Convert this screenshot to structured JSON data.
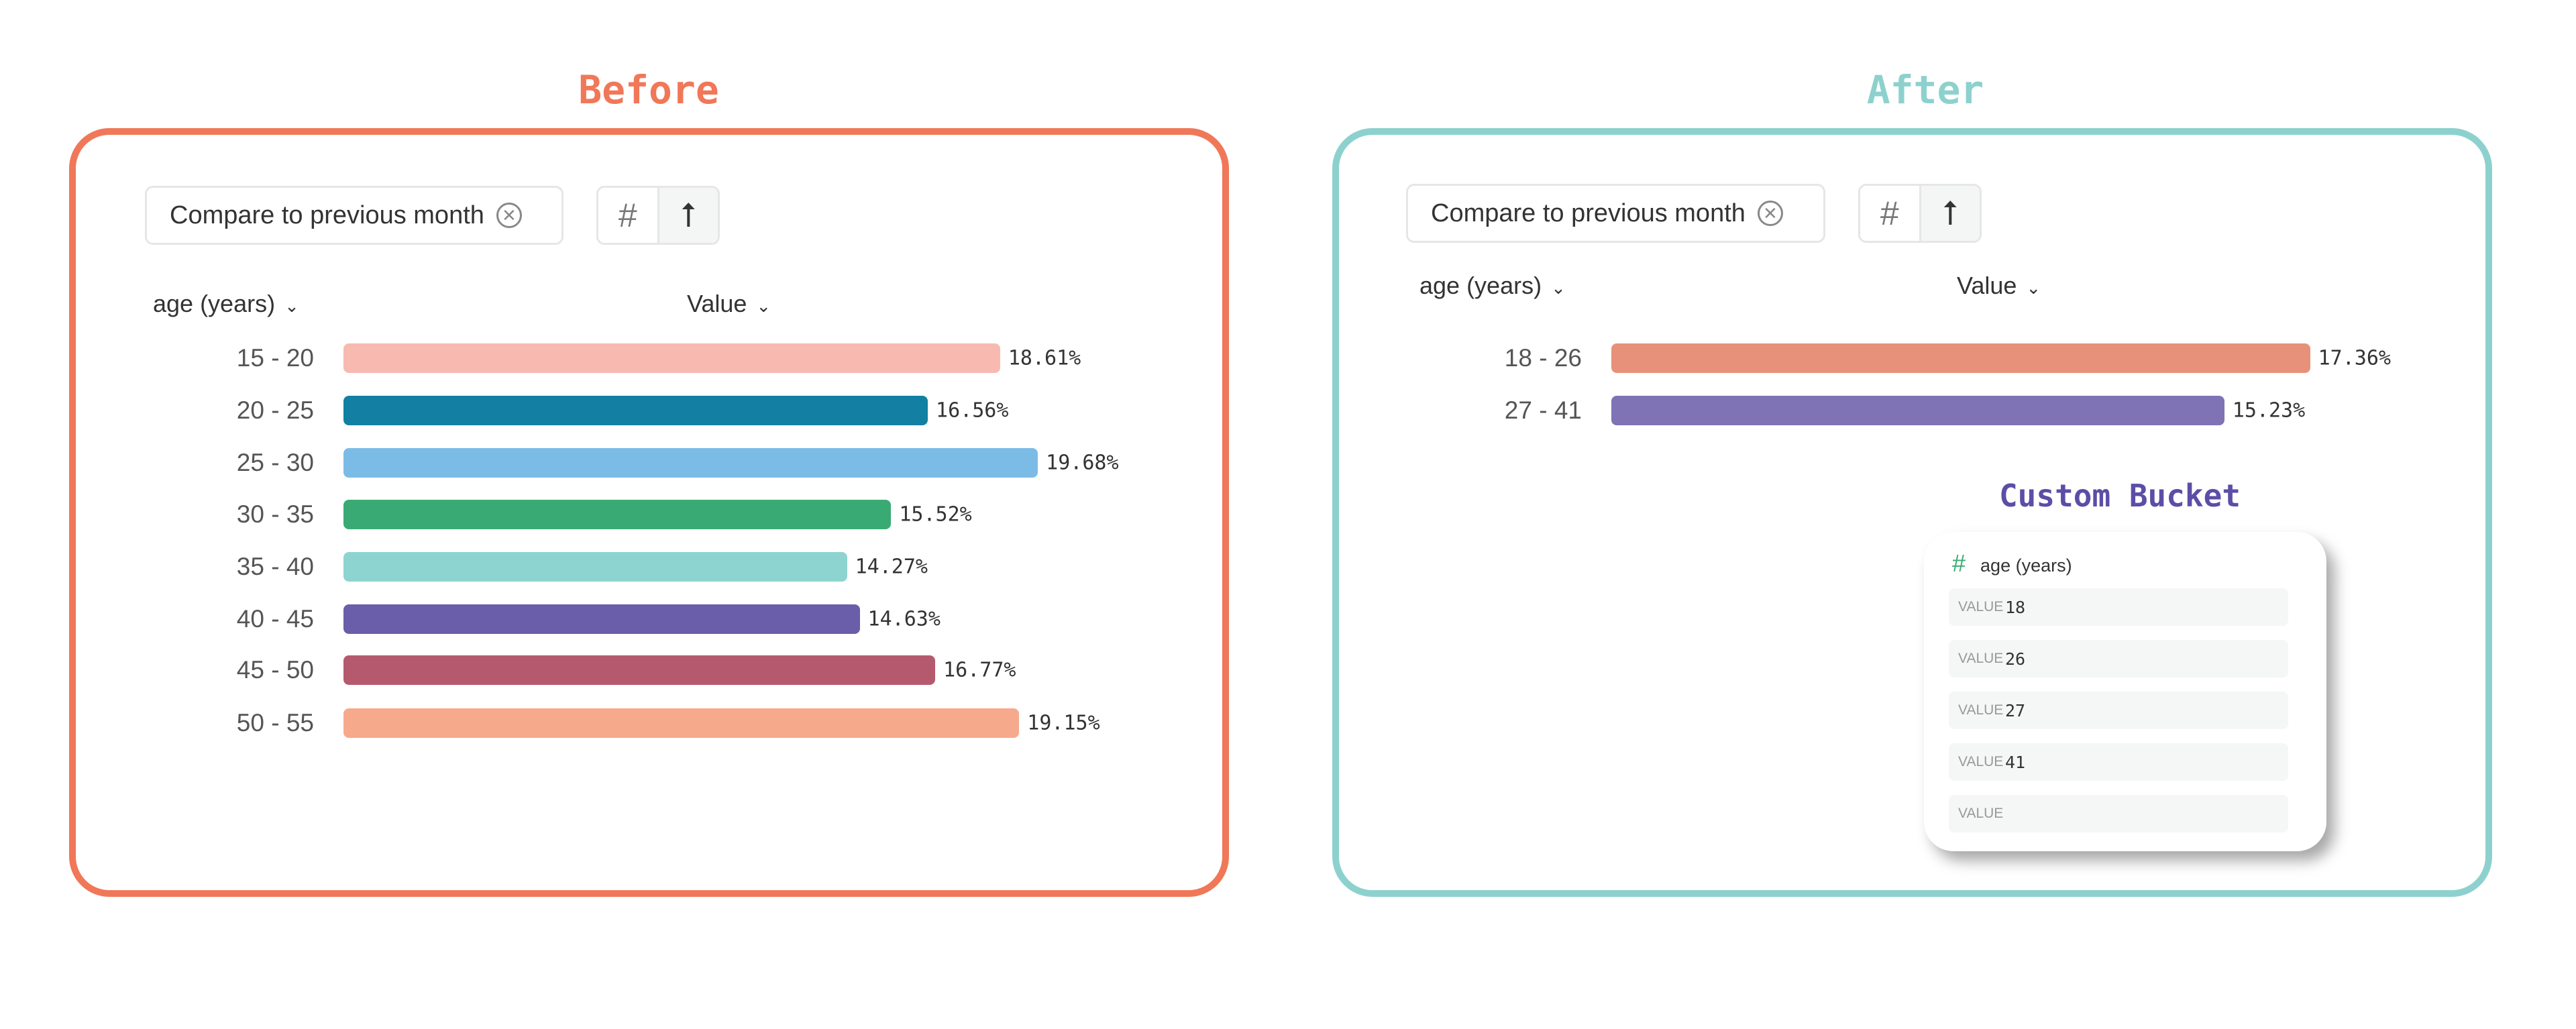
{
  "before": {
    "title": "Before",
    "compare_label": "Compare to previous month",
    "col_dim": "age (years)",
    "col_val": "Value",
    "border": "#F07858"
  },
  "after": {
    "title": "After",
    "compare_label": "Compare to previous month",
    "col_dim": "age (years)",
    "col_val": "Value",
    "border": "#8DD1CE"
  },
  "custom_bucket": {
    "title": "Custom Bucket",
    "field": "age (years)",
    "rows": [
      {
        "key": "VALUE",
        "value": "18"
      },
      {
        "key": "VALUE",
        "value": "26"
      },
      {
        "key": "VALUE",
        "value": "27"
      },
      {
        "key": "VALUE",
        "value": "41"
      },
      {
        "key": "VALUE",
        "value": ""
      }
    ]
  },
  "icons": {
    "number": "hash-icon",
    "sort": "sort-arrow-icon",
    "clear": "close-circle-icon",
    "chevron": "chevron-down-icon"
  },
  "chart_data": [
    {
      "type": "bar",
      "orientation": "horizontal",
      "categories": [
        "15 - 20",
        "20 - 25",
        "25 - 30",
        "30 - 35",
        "35 - 40",
        "40 - 45",
        "45 - 50",
        "50 - 55"
      ],
      "values": [
        18.61,
        16.56,
        19.68,
        15.52,
        14.27,
        14.63,
        16.77,
        19.15
      ],
      "labels": [
        "18.61%",
        "16.56%",
        "19.68%",
        "15.52%",
        "14.27%",
        "14.63%",
        "16.77%",
        "19.15%"
      ],
      "colors": [
        "#F8BAB0",
        "#127FA3",
        "#7BBCE6",
        "#3AAA74",
        "#8DD4D0",
        "#6A5EAA",
        "#B55A6E",
        "#F7A98C"
      ],
      "xlabel": "Value",
      "ylabel": "age (years)"
    },
    {
      "type": "bar",
      "orientation": "horizontal",
      "categories": [
        "18 - 26",
        "27 - 41"
      ],
      "values": [
        17.36,
        15.23
      ],
      "labels": [
        "17.36%",
        "15.23%"
      ],
      "colors": [
        "#E8917A",
        "#7F72B5"
      ],
      "xlabel": "Value",
      "ylabel": "age (years)"
    }
  ]
}
